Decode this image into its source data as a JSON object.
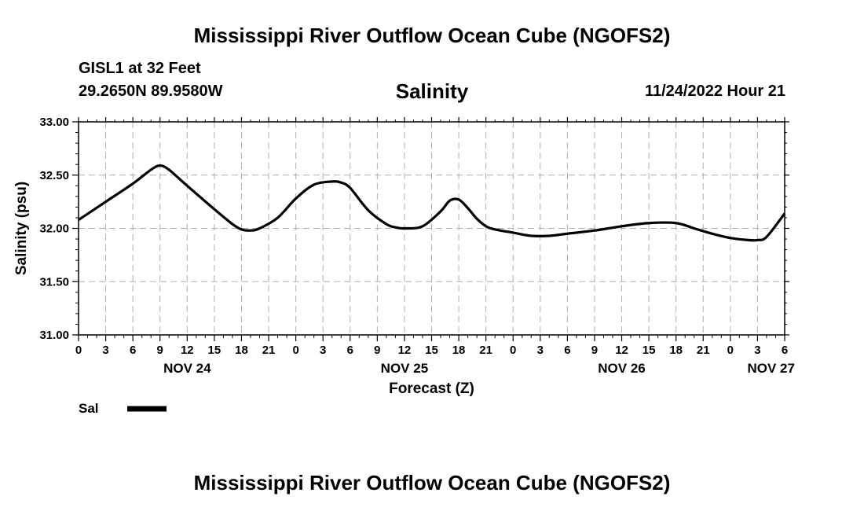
{
  "header": {
    "main_title": "Mississippi River Outflow Ocean Cube (NGOFS2)",
    "station": "GISL1 at 32 Feet",
    "coordinates": "29.2650N  89.9580W",
    "timestamp": "11/24/2022 Hour 21",
    "footer_title": "Mississippi River Outflow Ocean Cube (NGOFS2)"
  },
  "legend": {
    "label": "Sal",
    "color": "#000000"
  },
  "chart_data": {
    "type": "line",
    "title": "Salinity",
    "xlabel": "Forecast (Z)",
    "ylabel": "Salinity (psu)",
    "ylim": [
      31.0,
      33.0
    ],
    "xlim": [
      0,
      78
    ],
    "grid": true,
    "y_ticks": [
      "31.00",
      "31.50",
      "32.00",
      "32.50",
      "33.00"
    ],
    "y_tick_values": [
      31.0,
      31.5,
      32.0,
      32.5,
      33.0
    ],
    "x_tick_labels": [
      "0",
      "3",
      "6",
      "9",
      "12",
      "15",
      "18",
      "21",
      "0",
      "3",
      "6",
      "9",
      "12",
      "15",
      "18",
      "21",
      "0",
      "3",
      "6",
      "9",
      "12",
      "15",
      "18",
      "21",
      "0",
      "3",
      "6"
    ],
    "day_labels": [
      {
        "label": "NOV 24",
        "hour": 12
      },
      {
        "label": "NOV 25",
        "hour": 36
      },
      {
        "label": "NOV 26",
        "hour": 60
      },
      {
        "label": "NOV 27",
        "hour": 76.5
      }
    ],
    "series": [
      {
        "name": "Sal",
        "x": [
          0,
          3,
          6,
          8,
          9,
          10,
          12,
          15,
          17,
          18,
          19,
          20,
          22,
          24,
          26,
          28,
          29,
          30,
          32,
          34,
          35,
          36,
          38,
          40,
          41,
          42,
          43,
          44,
          45,
          46,
          48,
          50,
          52,
          54,
          57,
          60,
          63,
          66,
          68,
          70,
          72,
          74,
          75,
          76,
          78
        ],
        "values": [
          32.08,
          32.25,
          32.42,
          32.55,
          32.59,
          32.55,
          32.4,
          32.18,
          32.04,
          31.99,
          31.98,
          32.0,
          32.1,
          32.28,
          32.41,
          32.44,
          32.43,
          32.38,
          32.17,
          32.04,
          32.01,
          32.0,
          32.02,
          32.16,
          32.26,
          32.27,
          32.19,
          32.09,
          32.02,
          31.99,
          31.96,
          31.93,
          31.93,
          31.95,
          31.98,
          32.02,
          32.05,
          32.05,
          32.0,
          31.95,
          31.91,
          31.89,
          31.89,
          31.92,
          32.14
        ]
      }
    ]
  }
}
